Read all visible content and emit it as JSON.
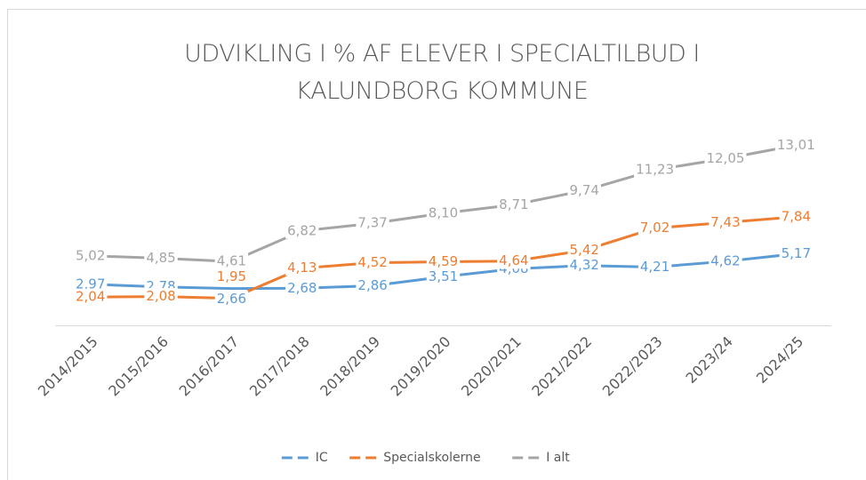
{
  "chart_data": {
    "type": "line",
    "title": "UDVIKLING I % AF ELEVER I SPECIALTILBUD I KALUNDBORG KOMMUNE",
    "categories": [
      "2014/2015",
      "2015/2016",
      "2016/2017",
      "2017/2018",
      "2018/2019",
      "2019/2020",
      "2020/2021",
      "2021/2022",
      "2022/2023",
      "2023/24",
      "2024/25"
    ],
    "series": [
      {
        "name": "IC",
        "color": "#5b9bd5",
        "values": [
          2.97,
          2.78,
          2.66,
          2.68,
          2.86,
          3.51,
          4.08,
          4.32,
          4.21,
          4.62,
          5.17
        ],
        "value_labels": [
          "2,97",
          "2,78",
          "2,66",
          "2,68",
          "2,86",
          "3,51",
          "4,08",
          "4,32",
          "4,21",
          "4,62",
          "5,17"
        ]
      },
      {
        "name": "Specialskolerne",
        "color": "#ed7d31",
        "values": [
          2.04,
          2.08,
          1.95,
          4.13,
          4.52,
          4.59,
          4.64,
          5.42,
          7.02,
          7.43,
          7.84
        ],
        "value_labels": [
          "2,04",
          "2,08",
          "1,95",
          "4,13",
          "4,52",
          "4,59",
          "4,64",
          "5,42",
          "7,02",
          "7,43",
          "7,84"
        ]
      },
      {
        "name": "I alt",
        "color": "#a5a5a5",
        "values": [
          5.02,
          4.85,
          4.61,
          6.82,
          7.37,
          8.1,
          8.71,
          9.74,
          11.23,
          12.05,
          13.01
        ],
        "value_labels": [
          "5,02",
          "4,85",
          "4,61",
          "6,82",
          "7,37",
          "8,10",
          "8,71",
          "9,74",
          "11,23",
          "12,05",
          "13,01"
        ]
      }
    ],
    "ylim": [
      0,
      14
    ],
    "legend": "bottom"
  }
}
